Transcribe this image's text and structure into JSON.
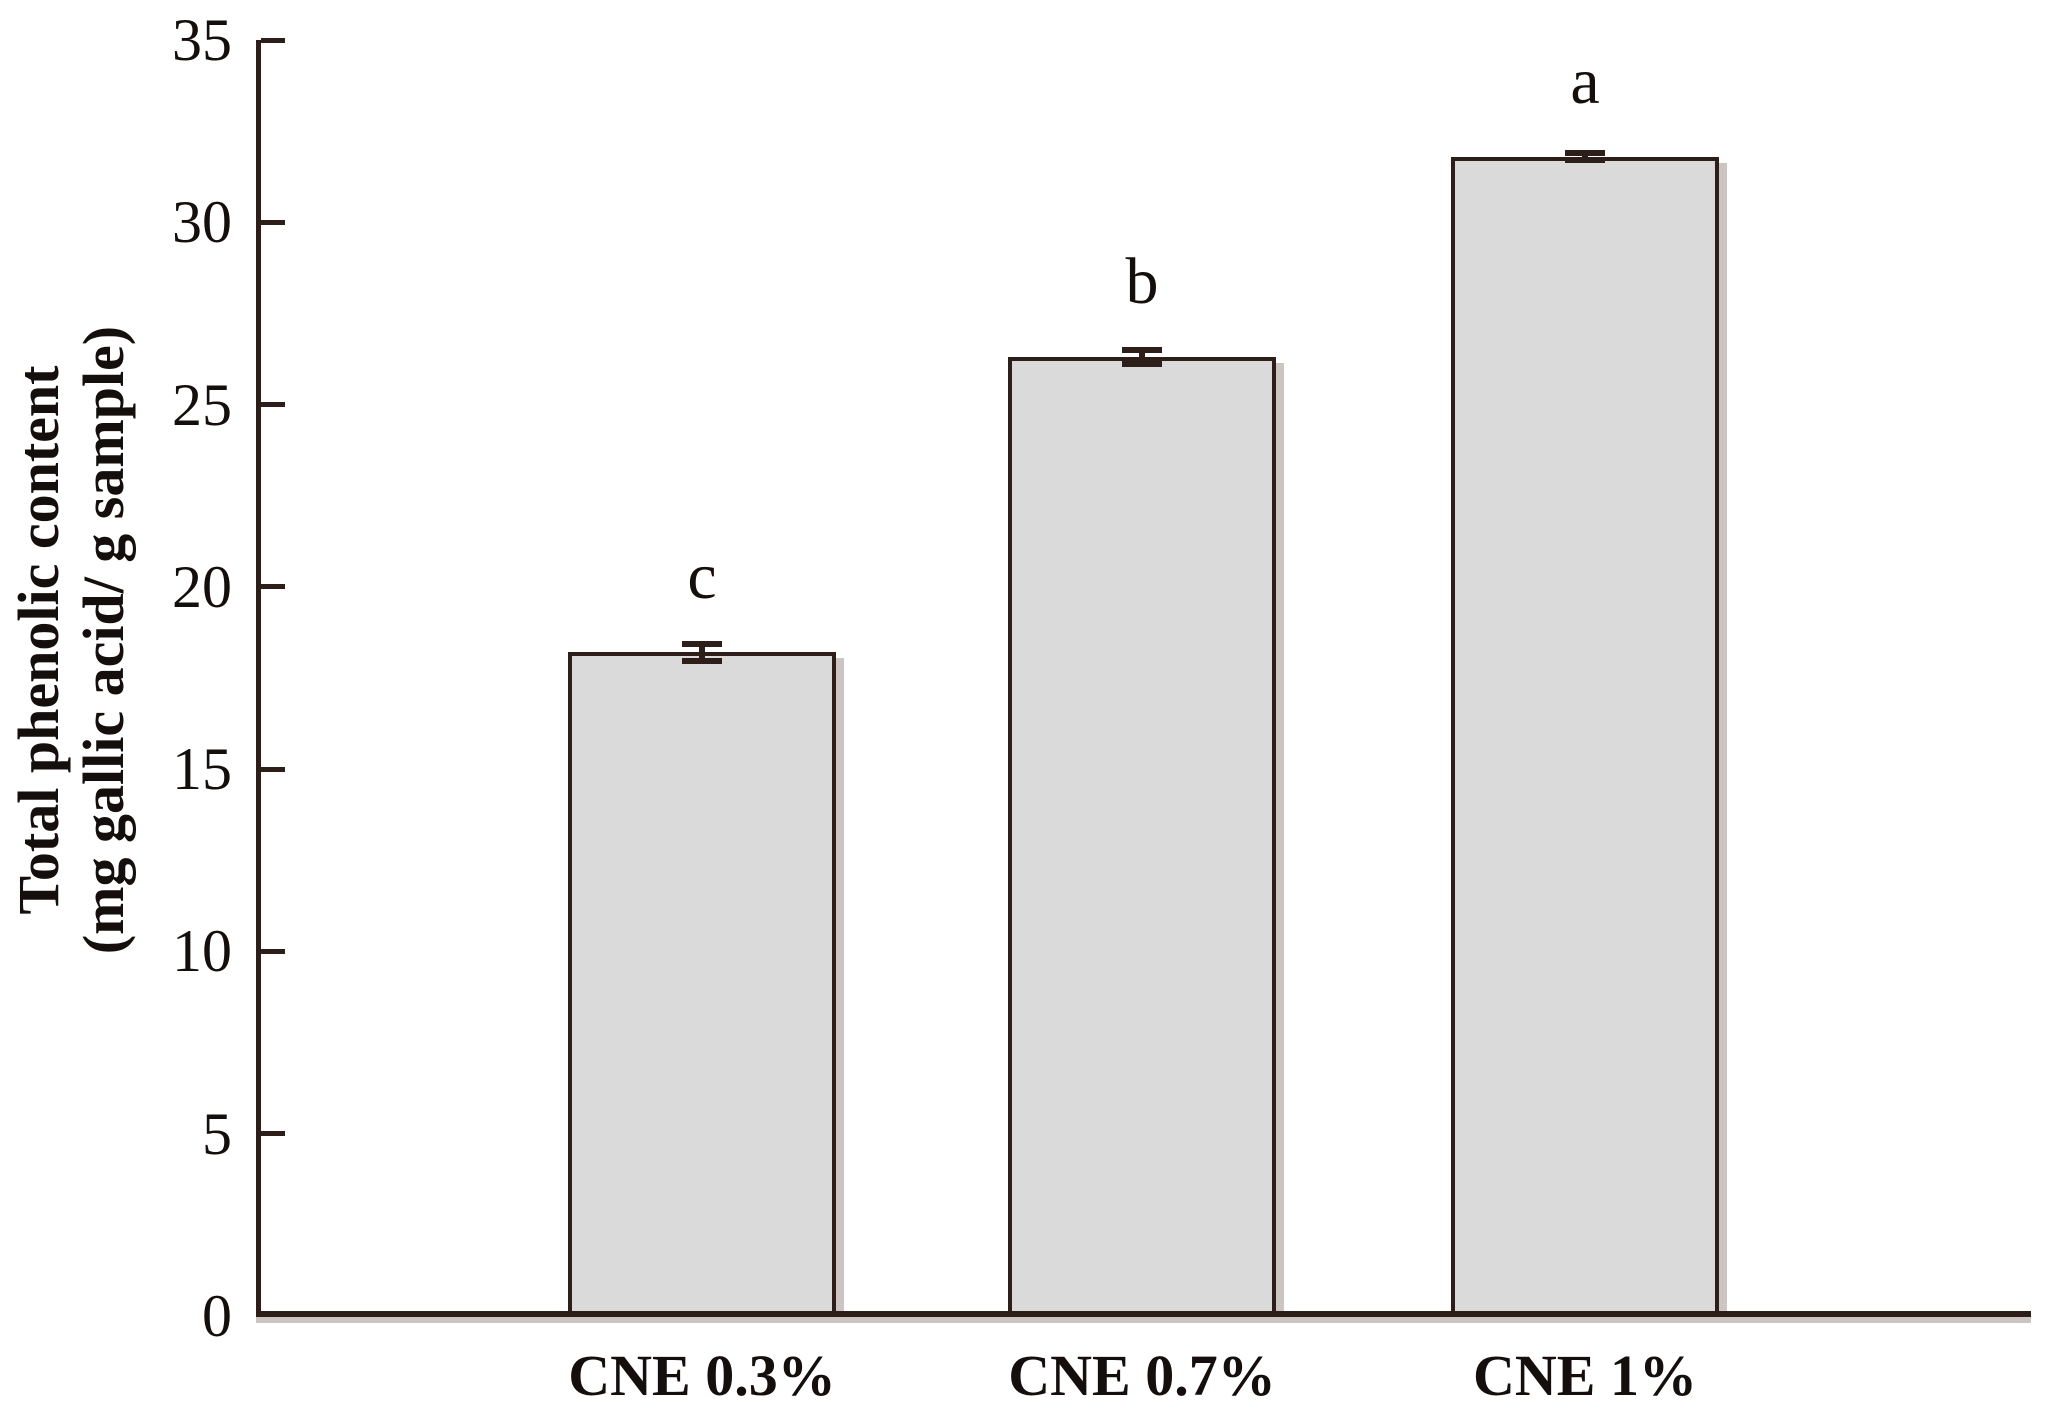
{
  "chart_data": {
    "type": "bar",
    "title": "",
    "categories": [
      "CNE 0.3%",
      "CNE 0.7%",
      "CNE 1%"
    ],
    "values": [
      18.2,
      26.3,
      31.8
    ],
    "errors": [
      0.22,
      0.2,
      0.1
    ],
    "significance_letters": [
      "c",
      "b",
      "a"
    ],
    "xlabel": "",
    "ylabel_line1": "Total phenolic content",
    "ylabel_line2": "(mg gallic acid/ g sample)",
    "ylim": [
      0,
      35
    ],
    "yticks": [
      0,
      5,
      10,
      15,
      20,
      25,
      30,
      35
    ],
    "grid": false,
    "legend": "none",
    "colors": {
      "bar_fill": "#dadada",
      "axis_and_border": "#2e1e19",
      "text": "#140e0c",
      "shadow": "#ccc5c2"
    }
  }
}
